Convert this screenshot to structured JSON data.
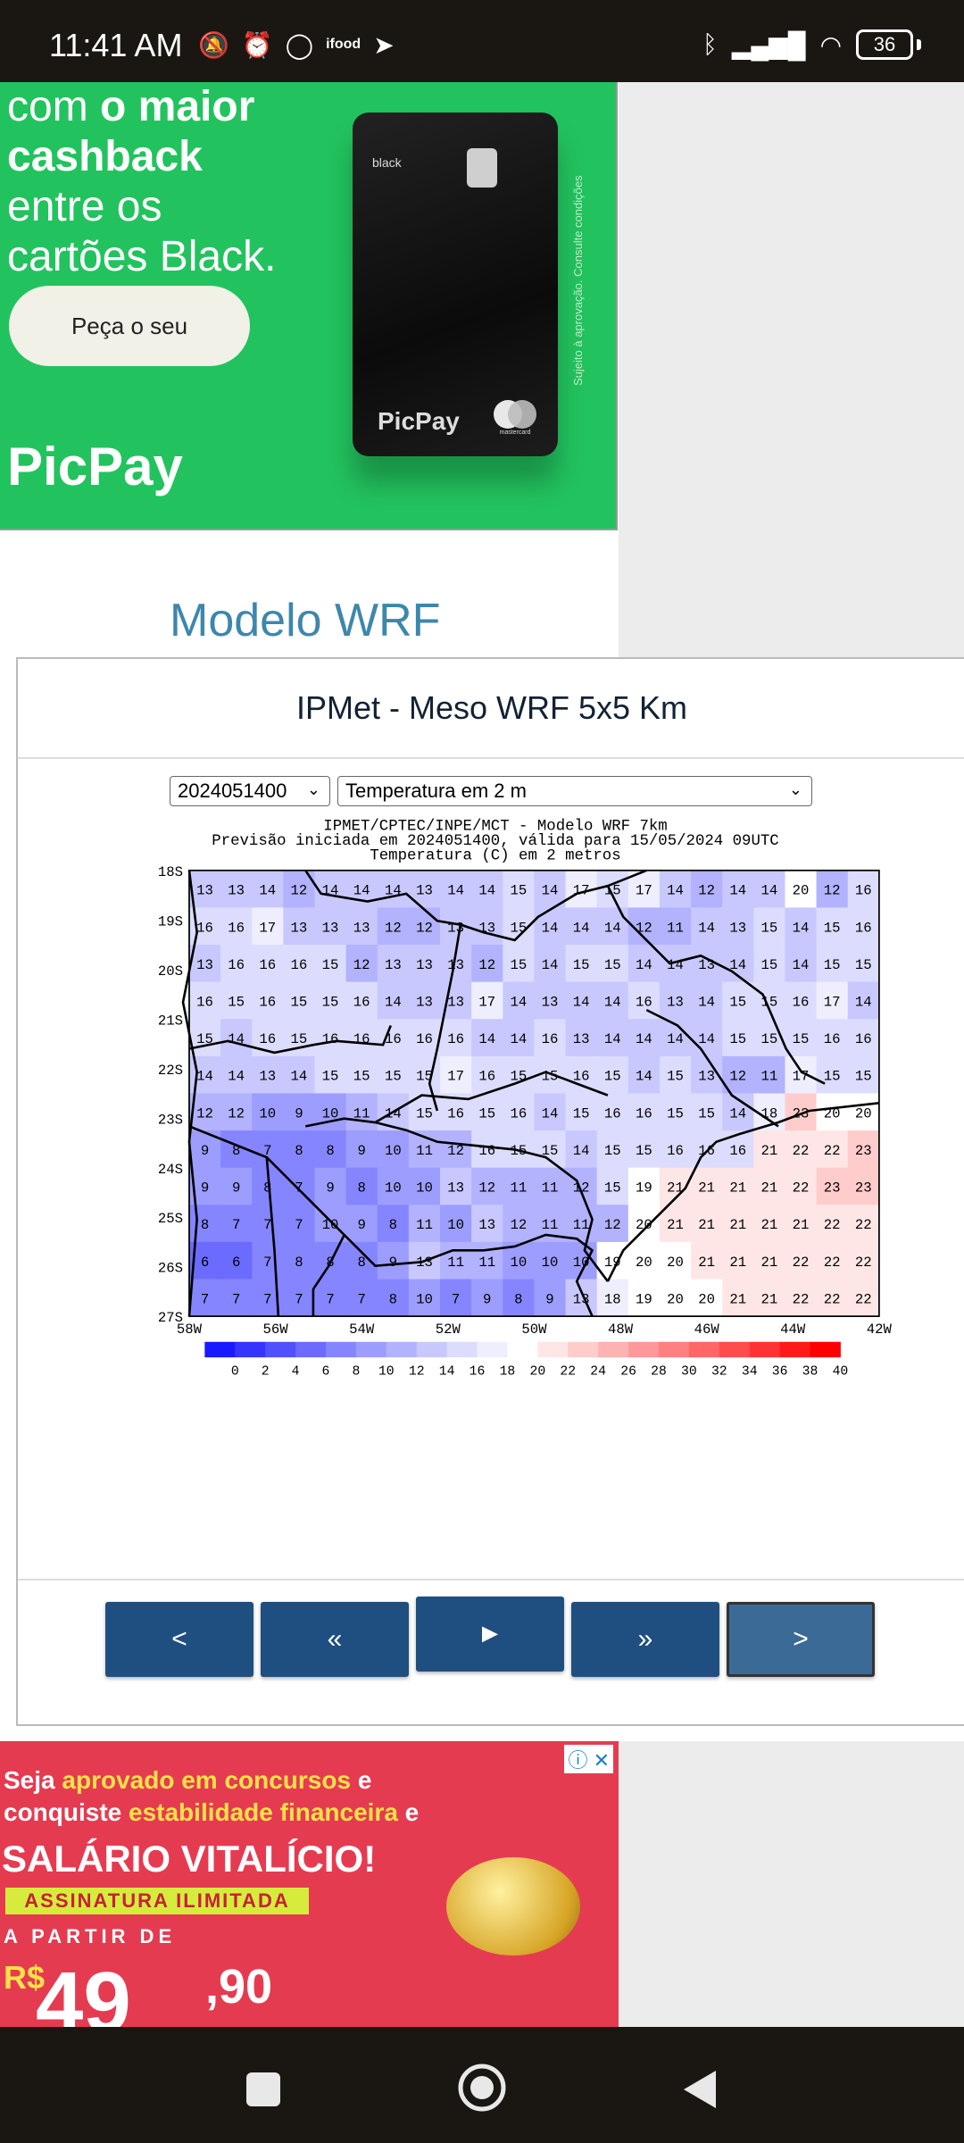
{
  "status_bar": {
    "time": "11:41 AM",
    "left_icons": [
      "mute-icon",
      "alarm-icon",
      "whatsapp-icon",
      "ifood-icon",
      "telegram-icon"
    ],
    "ifood_label": "ifood",
    "right_icons": [
      "bluetooth-icon",
      "signal-icon",
      "wifi-icon"
    ],
    "battery": "36"
  },
  "ad_picpay": {
    "headline_line1_prefix": "com ",
    "headline_line1_bold": "o maior",
    "headline_line2_bold": "cashback",
    "headline_line3": "entre os",
    "headline_line4": "cartões Black.",
    "cta": "Peça o seu",
    "logo": "PicPay",
    "card_label": "black",
    "card_logo": "PicPay",
    "card_brand": "mastercard",
    "side_text": "Sujeito à aprovação. Consulte condições"
  },
  "section_title": "Modelo WRF",
  "panel": {
    "title": "IPMet - Meso WRF 5x5 Km",
    "select_run": "2024051400",
    "select_variable": "Temperatura em 2 m"
  },
  "chart_data": {
    "type": "heatmap",
    "title_lines": [
      "IPMET/CPTEC/INPE/MCT - Modelo WRF 7km",
      "Previsão iniciada em 2024051400, válida para 15/05/2024 09UTC",
      "Temperatura (C) em 2 metros"
    ],
    "x_ticks": [
      "58W",
      "56W",
      "54W",
      "52W",
      "50W",
      "48W",
      "46W",
      "44W",
      "42W"
    ],
    "y_ticks": [
      "18S",
      "19S",
      "20S",
      "21S",
      "22S",
      "23S",
      "24S",
      "25S",
      "26S",
      "27S"
    ],
    "colorbar_ticks": [
      "0",
      "2",
      "4",
      "6",
      "8",
      "10",
      "12",
      "14",
      "16",
      "18",
      "20",
      "22",
      "24",
      "26",
      "28",
      "30",
      "32",
      "34",
      "36",
      "38",
      "40"
    ],
    "colorbar_colors": [
      "#1a1aff",
      "#3535ff",
      "#5050ff",
      "#6b6bff",
      "#8585ff",
      "#9d9dff",
      "#b2b2ff",
      "#c8c8ff",
      "#dcdcff",
      "#eeeeff",
      "#ffffff",
      "#ffe6e6",
      "#ffcccc",
      "#ffb2b2",
      "#ff9999",
      "#ff8080",
      "#ff6666",
      "#ff4c4c",
      "#ff3333",
      "#ff1a1a",
      "#ff0000"
    ],
    "grid_values": [
      [
        13,
        13,
        14,
        12,
        14,
        14,
        14,
        13,
        14,
        14,
        15,
        14,
        17,
        15,
        17,
        14,
        12,
        14,
        14,
        20,
        12,
        16
      ],
      [
        16,
        16,
        17,
        13,
        13,
        13,
        12,
        12,
        13,
        13,
        15,
        14,
        14,
        14,
        12,
        11,
        14,
        13,
        15,
        14,
        15,
        16
      ],
      [
        13,
        16,
        16,
        16,
        15,
        12,
        13,
        13,
        13,
        12,
        15,
        14,
        15,
        15,
        14,
        14,
        13,
        14,
        15,
        14,
        15,
        15
      ],
      [
        16,
        15,
        16,
        15,
        15,
        16,
        14,
        13,
        13,
        17,
        14,
        13,
        14,
        14,
        16,
        13,
        14,
        15,
        15,
        16,
        17,
        14
      ],
      [
        15,
        14,
        16,
        15,
        16,
        16,
        16,
        16,
        16,
        14,
        14,
        16,
        13,
        14,
        14,
        14,
        14,
        15,
        15,
        15,
        16,
        16
      ],
      [
        14,
        14,
        13,
        14,
        15,
        15,
        15,
        15,
        17,
        16,
        15,
        15,
        16,
        15,
        14,
        15,
        13,
        12,
        11,
        17,
        15,
        15
      ],
      [
        12,
        12,
        10,
        9,
        10,
        11,
        14,
        15,
        16,
        15,
        16,
        14,
        15,
        16,
        16,
        15,
        15,
        14,
        18,
        23,
        20,
        20
      ],
      [
        9,
        8,
        7,
        8,
        8,
        9,
        10,
        11,
        12,
        16,
        15,
        15,
        14,
        15,
        15,
        16,
        16,
        16,
        21,
        22,
        22,
        23
      ],
      [
        9,
        9,
        8,
        7,
        9,
        8,
        10,
        10,
        13,
        12,
        11,
        11,
        12,
        15,
        19,
        21,
        21,
        21,
        21,
        22,
        23,
        23
      ],
      [
        8,
        7,
        7,
        7,
        10,
        9,
        8,
        11,
        10,
        13,
        12,
        11,
        11,
        12,
        20,
        21,
        21,
        21,
        21,
        21,
        22,
        22
      ],
      [
        6,
        6,
        7,
        8,
        8,
        8,
        9,
        13,
        11,
        11,
        10,
        10,
        10,
        19,
        20,
        20,
        21,
        21,
        21,
        22,
        22,
        22
      ],
      [
        7,
        7,
        7,
        7,
        7,
        7,
        8,
        10,
        7,
        9,
        8,
        9,
        13,
        18,
        19,
        20,
        20,
        21,
        21,
        22,
        22,
        22
      ]
    ]
  },
  "nav_buttons": [
    "<",
    "«",
    "►",
    "»",
    ">"
  ],
  "ad_concurso": {
    "line1_a": "Seja ",
    "line1_b": "aprovado em concursos",
    "line1_c": " e",
    "line2_a": "conquiste ",
    "line2_b": "estabilidade financeira",
    "line2_c": " e",
    "headline": "SALÁRIO VITALÍCIO!",
    "band": "ASSINATURA ILIMITADA",
    "apartir": "A PARTIR DE",
    "currency": "R$",
    "price": "49",
    "cents": ",90",
    "adchoice": "ⓘ ✕"
  }
}
